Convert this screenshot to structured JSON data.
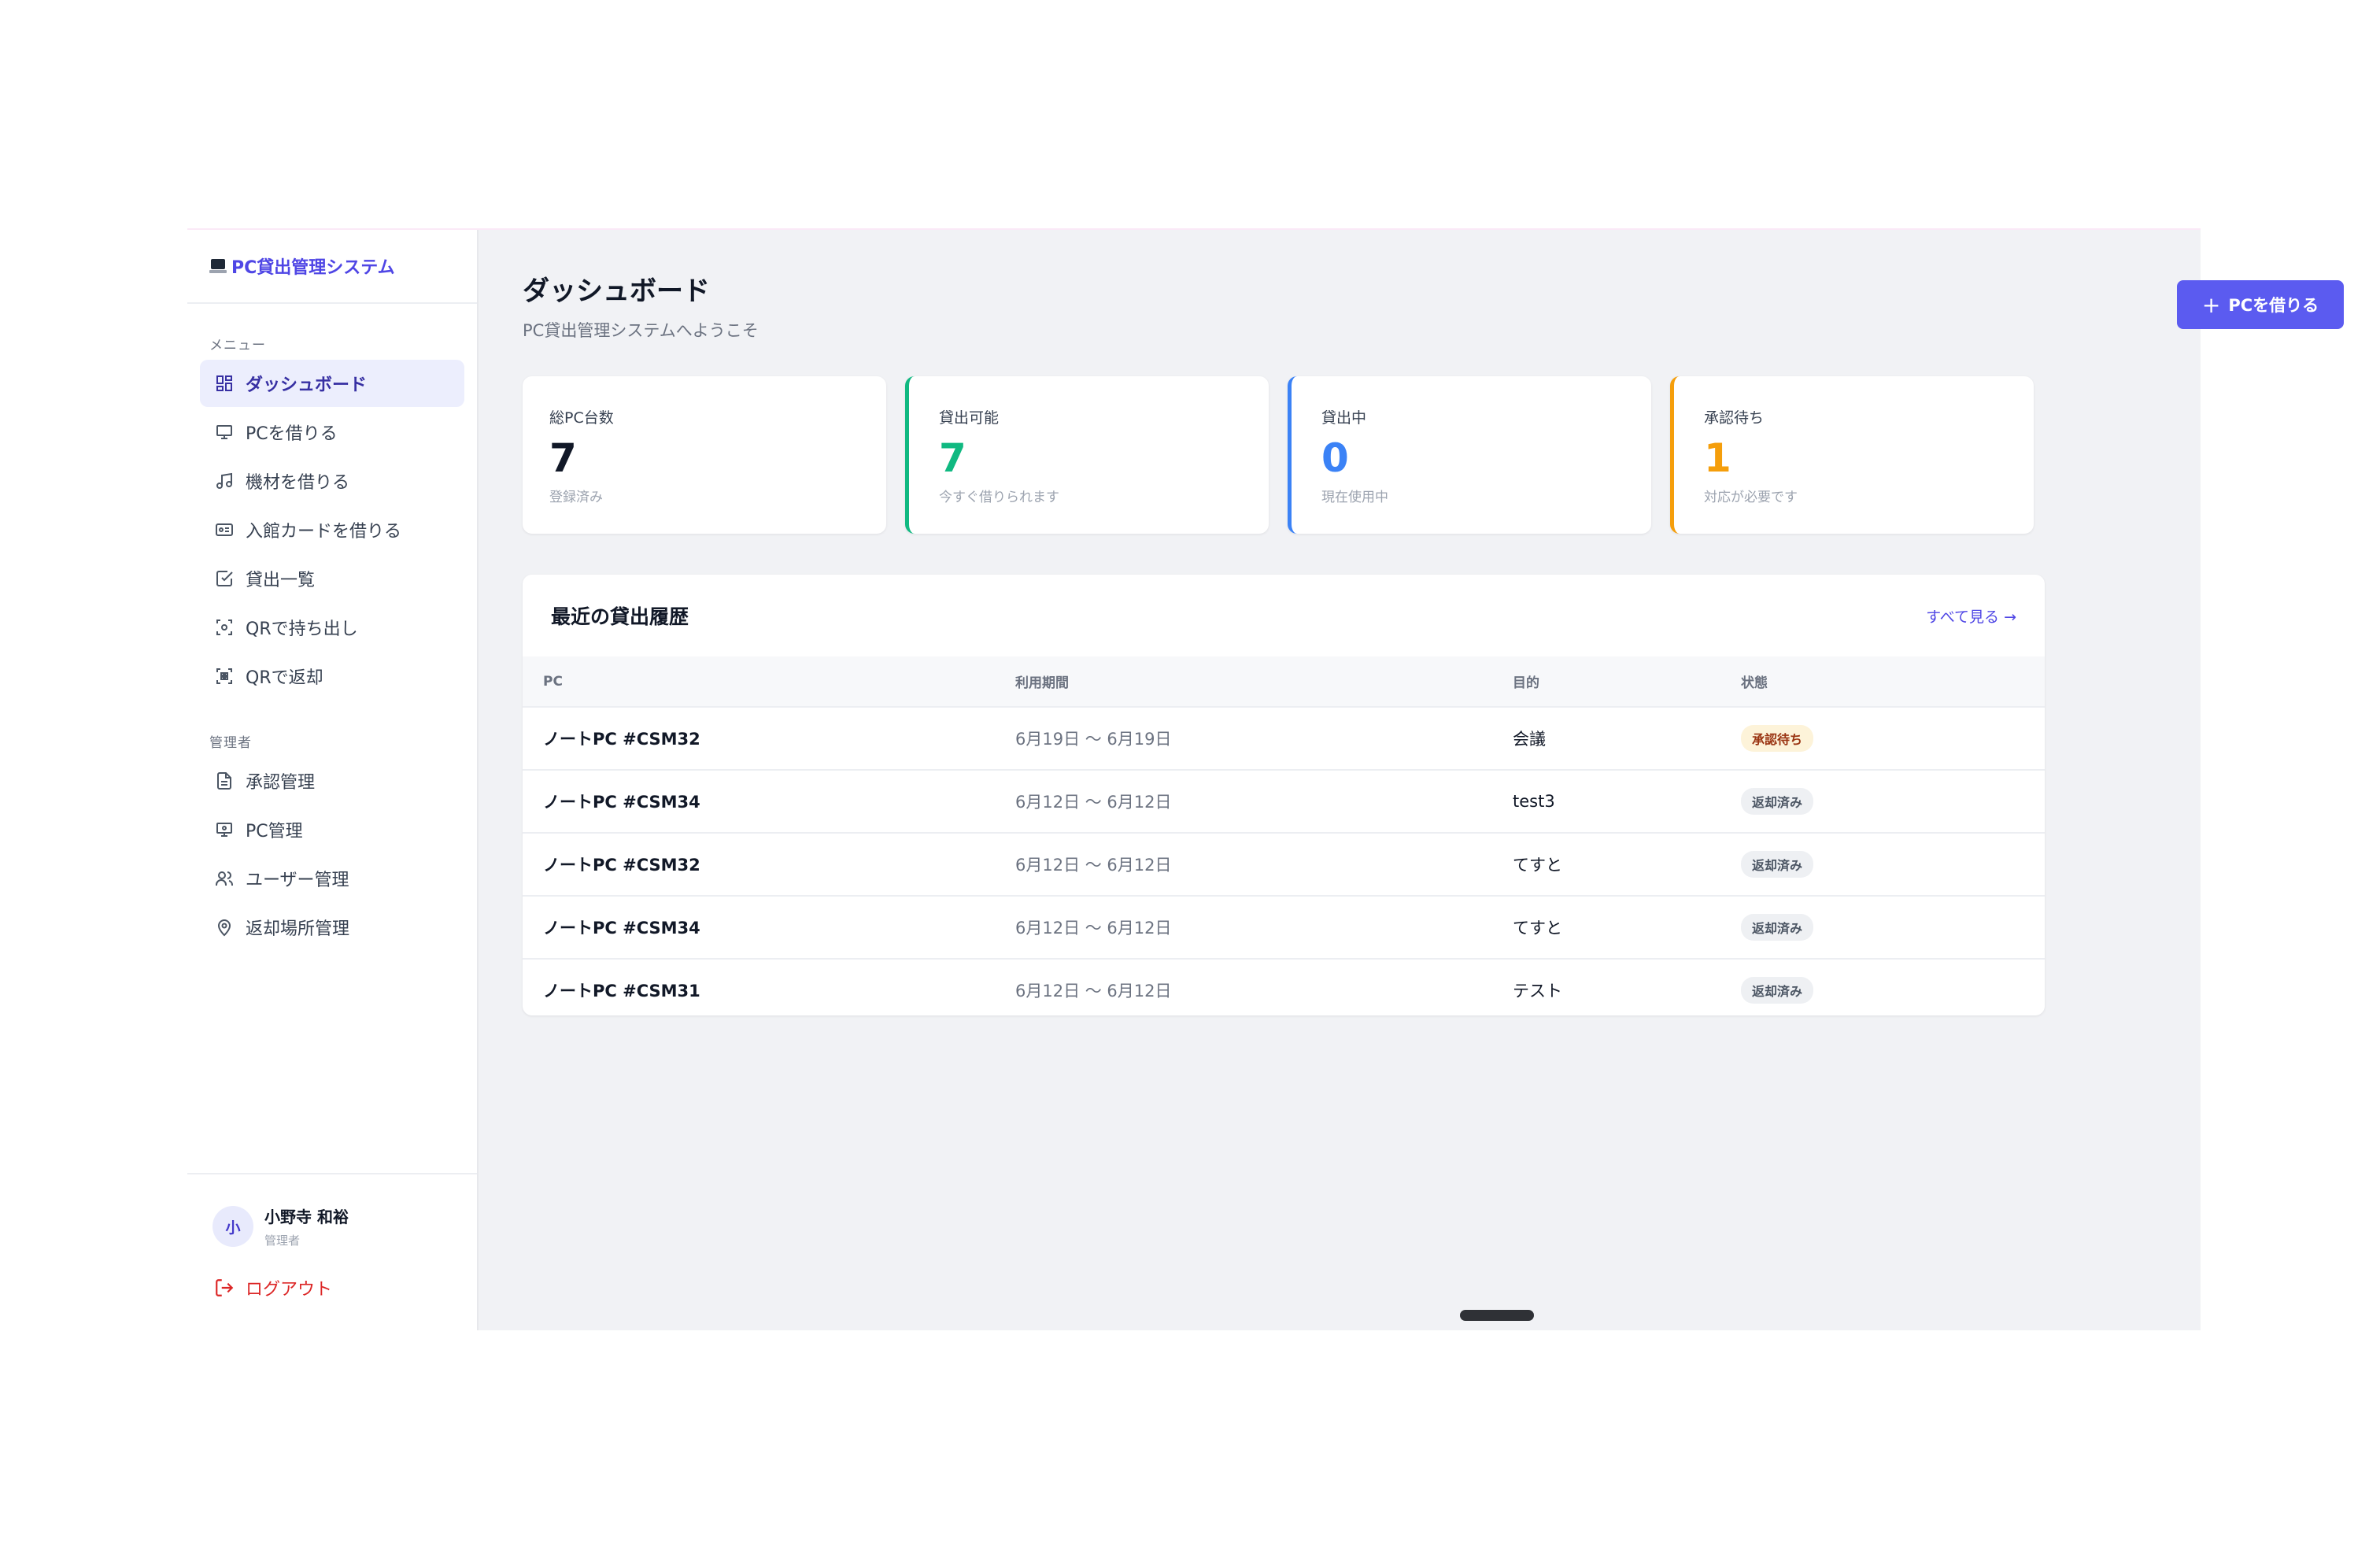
{
  "brand": {
    "title": "PC貸出管理システム"
  },
  "sidebar": {
    "menu_label": "メニュー",
    "items": [
      {
        "label": "ダッシュボード",
        "icon": "dashboard-icon"
      },
      {
        "label": "PCを借りる",
        "icon": "monitor-icon"
      },
      {
        "label": "機材を借りる",
        "icon": "music-note-icon"
      },
      {
        "label": "入館カードを借りる",
        "icon": "id-card-icon"
      },
      {
        "label": "貸出一覧",
        "icon": "checkbox-icon"
      },
      {
        "label": "QRで持ち出し",
        "icon": "qr-scan-icon"
      },
      {
        "label": "QRで返却",
        "icon": "qr-return-icon"
      }
    ],
    "admin_label": "管理者",
    "admin_items": [
      {
        "label": "承認管理",
        "icon": "document-icon"
      },
      {
        "label": "PC管理",
        "icon": "pc-settings-icon"
      },
      {
        "label": "ユーザー管理",
        "icon": "users-icon"
      },
      {
        "label": "返却場所管理",
        "icon": "map-pin-icon"
      }
    ],
    "user": {
      "avatar": "小",
      "name": "小野寺 和裕",
      "role": "管理者"
    },
    "logout_label": "ログアウト"
  },
  "header": {
    "title": "ダッシュボード",
    "subtitle": "PC貸出管理システムへようこそ",
    "primary_button": "PCを借りる"
  },
  "stats": [
    {
      "label": "総PC台数",
      "value": "7",
      "note": "登録済み",
      "color": "#111827"
    },
    {
      "label": "貸出可能",
      "value": "7",
      "note": "今すぐ借りられます",
      "color": "#10b981"
    },
    {
      "label": "貸出中",
      "value": "0",
      "note": "現在使用中",
      "color": "#3b82f6"
    },
    {
      "label": "承認待ち",
      "value": "1",
      "note": "対応が必要です",
      "color": "#f59e0b"
    }
  ],
  "recent": {
    "title": "最近の貸出履歴",
    "see_all": "すべて見る →",
    "columns": [
      "PC",
      "利用期間",
      "目的",
      "状態"
    ],
    "rows": [
      {
        "pc": "ノートPC #CSM32",
        "period": "6月19日 〜 6月19日",
        "purpose": "会議",
        "status": "承認待ち",
        "status_type": "pending"
      },
      {
        "pc": "ノートPC #CSM34",
        "period": "6月12日 〜 6月12日",
        "purpose": "test3",
        "status": "返却済み",
        "status_type": "returned"
      },
      {
        "pc": "ノートPC #CSM32",
        "period": "6月12日 〜 6月12日",
        "purpose": "てすと",
        "status": "返却済み",
        "status_type": "returned"
      },
      {
        "pc": "ノートPC #CSM34",
        "period": "6月12日 〜 6月12日",
        "purpose": "てすと",
        "status": "返却済み",
        "status_type": "returned"
      },
      {
        "pc": "ノートPC #CSM31",
        "period": "6月12日 〜 6月12日",
        "purpose": "テスト",
        "status": "返却済み",
        "status_type": "returned"
      }
    ]
  },
  "colors": {
    "accent": "#5b5bf0",
    "brand": "#4f46e5",
    "danger": "#dc2626"
  }
}
